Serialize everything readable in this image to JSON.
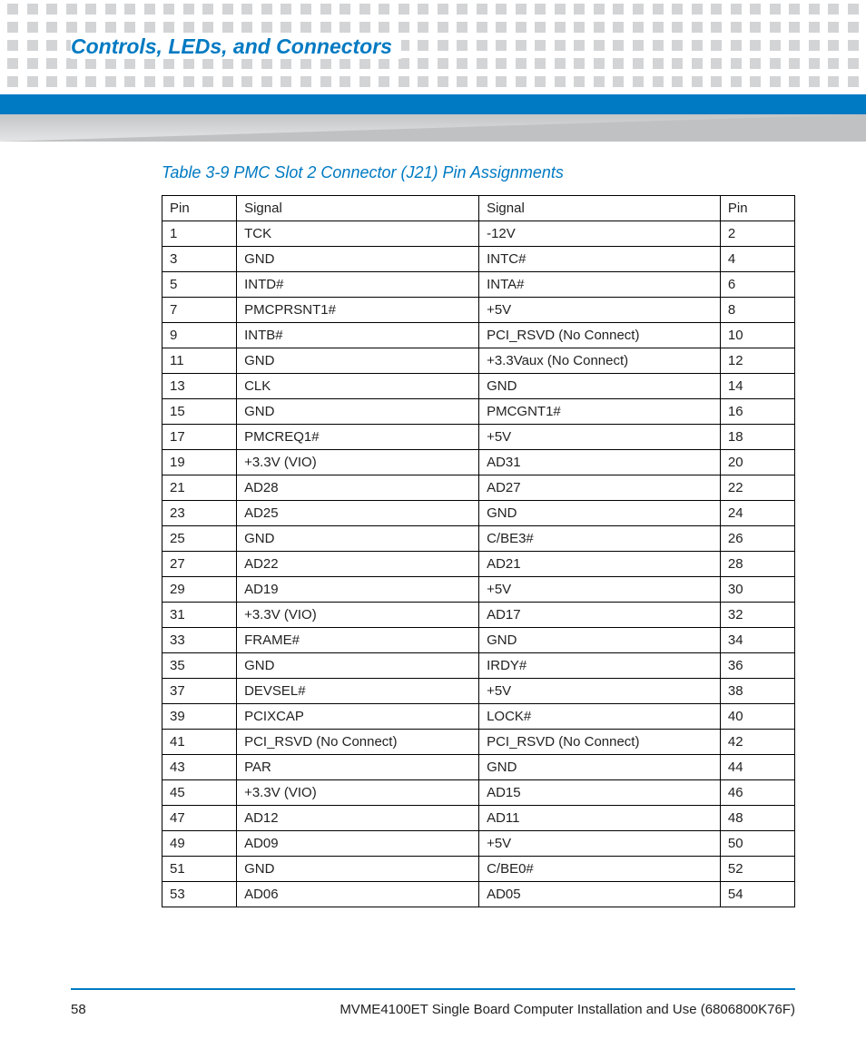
{
  "header": {
    "section_title": "Controls, LEDs, and Connectors"
  },
  "table": {
    "caption": "Table 3-9 PMC Slot 2 Connector (J21) Pin Assignments",
    "columns": [
      "Pin",
      "Signal",
      "Signal",
      "Pin"
    ],
    "rows": [
      [
        "1",
        "TCK",
        "-12V",
        "2"
      ],
      [
        "3",
        "GND",
        "INTC#",
        "4"
      ],
      [
        "5",
        "INTD#",
        "INTA#",
        "6"
      ],
      [
        "7",
        "PMCPRSNT1#",
        "+5V",
        "8"
      ],
      [
        "9",
        "INTB#",
        "PCI_RSVD (No Connect)",
        "10"
      ],
      [
        "11",
        "GND",
        "+3.3Vaux (No Connect)",
        "12"
      ],
      [
        "13",
        "CLK",
        "GND",
        "14"
      ],
      [
        "15",
        "GND",
        "PMCGNT1#",
        "16"
      ],
      [
        "17",
        "PMCREQ1#",
        "+5V",
        "18"
      ],
      [
        "19",
        "+3.3V (VIO)",
        "AD31",
        "20"
      ],
      [
        "21",
        "AD28",
        "AD27",
        "22"
      ],
      [
        "23",
        "AD25",
        "GND",
        "24"
      ],
      [
        "25",
        "GND",
        "C/BE3#",
        "26"
      ],
      [
        "27",
        "AD22",
        "AD21",
        "28"
      ],
      [
        "29",
        "AD19",
        "+5V",
        "30"
      ],
      [
        "31",
        "+3.3V (VIO)",
        "AD17",
        "32"
      ],
      [
        "33",
        "FRAME#",
        "GND",
        "34"
      ],
      [
        "35",
        "GND",
        "IRDY#",
        "36"
      ],
      [
        "37",
        "DEVSEL#",
        "+5V",
        "38"
      ],
      [
        "39",
        "PCIXCAP",
        "LOCK#",
        "40"
      ],
      [
        "41",
        "PCI_RSVD (No Connect)",
        "PCI_RSVD (No Connect)",
        "42"
      ],
      [
        "43",
        "PAR",
        "GND",
        "44"
      ],
      [
        "45",
        "+3.3V (VIO)",
        "AD15",
        "46"
      ],
      [
        "47",
        "AD12",
        "AD11",
        "48"
      ],
      [
        "49",
        "AD09",
        "+5V",
        "50"
      ],
      [
        "51",
        "GND",
        "C/BE0#",
        "52"
      ],
      [
        "53",
        "AD06",
        "AD05",
        "54"
      ]
    ]
  },
  "footer": {
    "page_number": "58",
    "doc_title": "MVME4100ET Single Board Computer Installation and Use (6806800K76F)"
  },
  "style": {
    "accent_color": "#007ac2",
    "dot_color": "#d2d4d6",
    "dot_rows": 5,
    "dots_per_row": 44
  }
}
